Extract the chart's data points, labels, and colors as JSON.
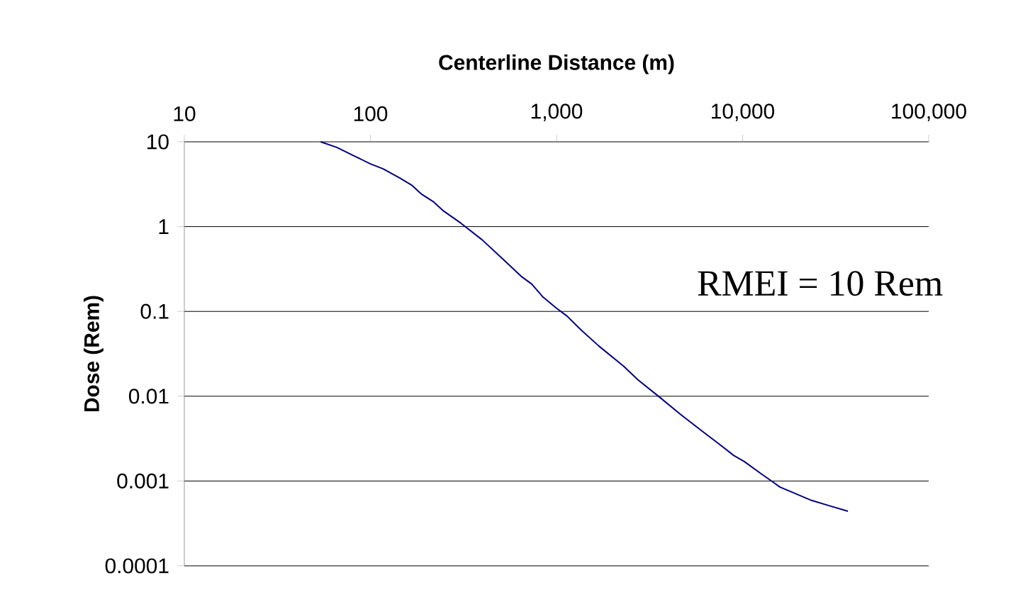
{
  "chart_data": {
    "type": "line",
    "xlabel": "Centerline Distance (m)",
    "ylabel": "Dose (Rem)",
    "annotations": [
      "RMEI = 10 Rem"
    ],
    "log": "xy",
    "xlim": [
      10,
      100000
    ],
    "ylim": [
      0.0001,
      10
    ],
    "xticks": [
      {
        "value": 10,
        "label": "10"
      },
      {
        "value": 100,
        "label": "100"
      },
      {
        "value": 1000,
        "label": "1,000"
      },
      {
        "value": 10000,
        "label": "10,000"
      },
      {
        "value": 100000,
        "label": "100,000"
      }
    ],
    "yticks": [
      0.0001,
      0.001,
      0.01,
      0.1,
      1,
      10
    ],
    "grid": "y",
    "marker": "none",
    "line_style": "solid",
    "x": [
      54,
      66,
      82,
      100,
      117,
      145,
      166,
      189,
      219,
      245,
      306,
      398,
      518,
      645,
      736,
      840,
      1000,
      1140,
      1360,
      1690,
      2300,
      2740,
      3570,
      4640,
      6040,
      7520,
      8960,
      10200,
      12700,
      14500,
      15850,
      23500,
      29300,
      36800
    ],
    "series": [
      {
        "color": "#000080",
        "values": [
          10,
          8.6,
          6.8,
          5.5,
          4.8,
          3.7,
          3.1,
          2.4,
          1.95,
          1.55,
          1.1,
          0.7,
          0.41,
          0.26,
          0.21,
          0.15,
          0.109,
          0.088,
          0.06,
          0.039,
          0.0225,
          0.0156,
          0.0098,
          0.0061,
          0.0039,
          0.0027,
          0.002,
          0.0017,
          0.0012,
          0.00098,
          0.00085,
          0.00059,
          0.00051,
          0.00044
        ]
      }
    ]
  }
}
